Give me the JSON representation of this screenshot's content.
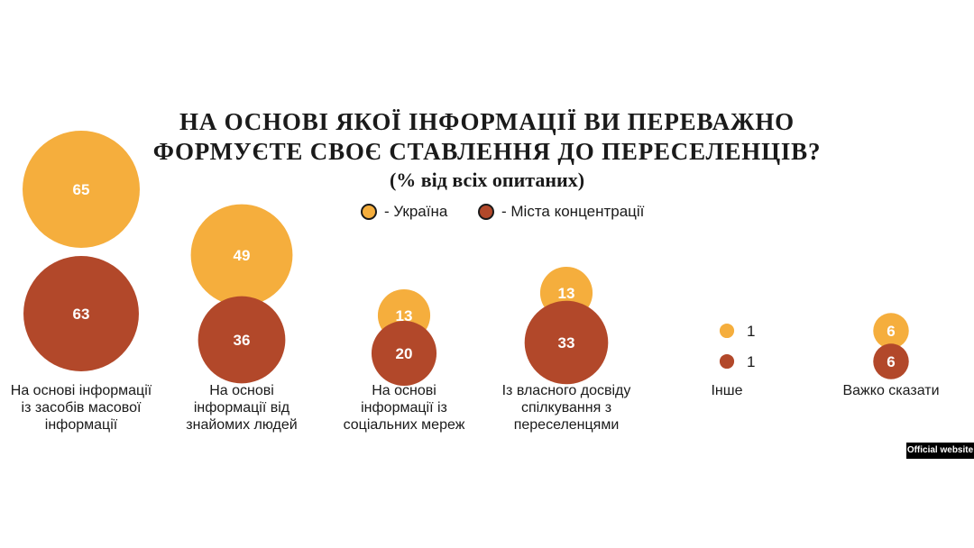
{
  "title_line1": "НА ОСНОВІ ЯКОЇ ІНФОРМАЦІЇ ВИ ПЕРЕВАЖНО",
  "title_line2": "ФОРМУЄТЕ СВОЄ СТАВЛЕННЯ ДО ПЕРЕСЕЛЕНЦІВ?",
  "subtitle": "(% від всіх опитаних)",
  "badge": "Official website",
  "colors": {
    "ukraine": "#F5AE3D",
    "cities": "#B2482A"
  },
  "chart_data": {
    "type": "bubble",
    "title": "НА ОСНОВІ ЯКОЇ ІНФОРМАЦІЇ ВИ ПЕРЕВАЖНО ФОРМУЄТЕ СВОЄ СТАВЛЕННЯ ДО ПЕРЕСЕЛЕНЦІВ?",
    "subtitle": "(% від всіх опитаних)",
    "categories": [
      "На основі інформації із засобів масової інформації",
      "На основі інформації від знайомих людей",
      "На основі інформації із соціальних мереж",
      "Із власного досвіду спілкування з переселенцями",
      "Інше",
      "Важко сказати"
    ],
    "category_lines": [
      [
        "На основі інформації",
        "із засобів масової",
        "інформації"
      ],
      [
        "На основі",
        "інформації від",
        "знайомих людей"
      ],
      [
        "На основі",
        "інформації із",
        "соціальних мереж"
      ],
      [
        "Із власного досвіду",
        "спілкування з",
        "переселенцями"
      ],
      [
        "Інше"
      ],
      [
        "Важко сказати"
      ]
    ],
    "series": [
      {
        "name": "- Україна",
        "color": "#F5AE3D",
        "values": [
          65,
          49,
          13,
          13,
          1,
          6
        ]
      },
      {
        "name": "- Міста концентрації",
        "color": "#B2482A",
        "values": [
          63,
          36,
          20,
          33,
          1,
          6
        ]
      }
    ],
    "legend": "top-center",
    "grid": false
  }
}
